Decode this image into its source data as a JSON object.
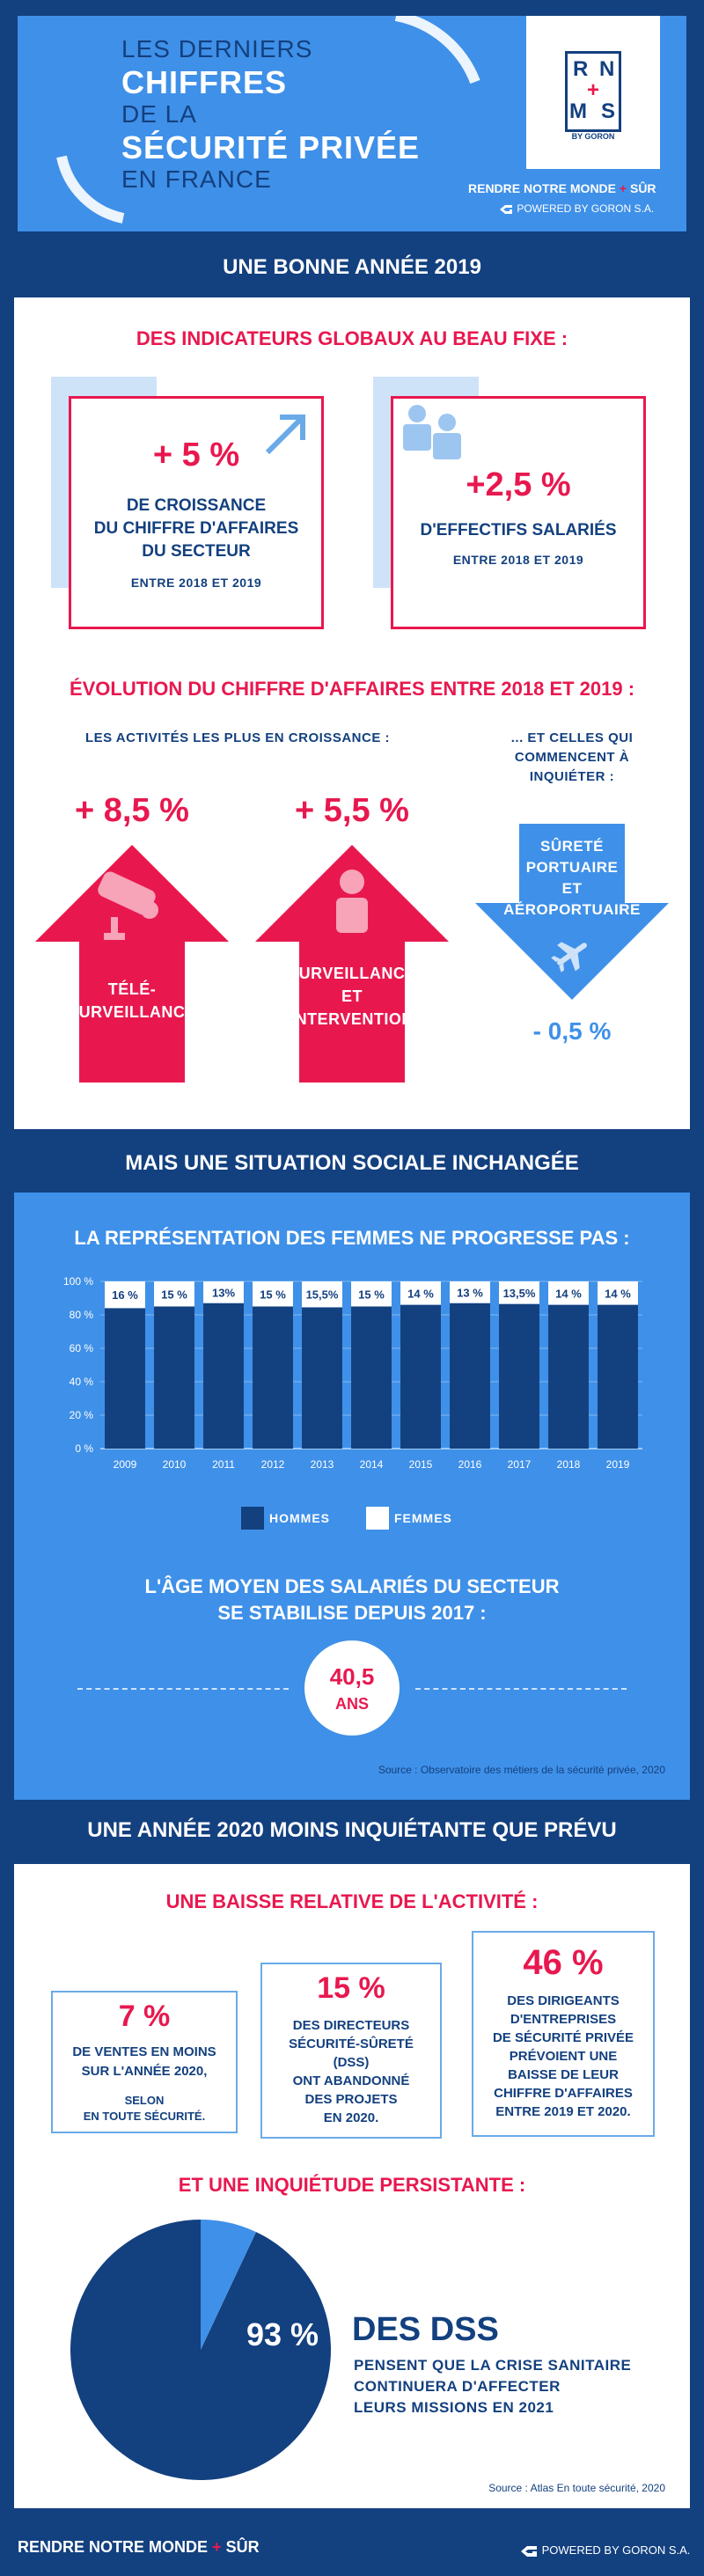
{
  "header": {
    "line1": "LES DERNIERS",
    "line2": "CHIFFRES",
    "line3": "DE LA",
    "line4": "SÉCURITÉ PRIVÉE",
    "line5": "EN FRANCE",
    "logo": {
      "r": "R",
      "n": "N",
      "m": "M",
      "s": "S",
      "plus": "+",
      "by": "BY GORON"
    },
    "tagline_prefix": "RENDRE NOTRE MONDE",
    "tagline_plus": "+",
    "tagline_sur": "SÛR",
    "powered": "POWERED BY GORON S.A."
  },
  "section1": {
    "banner": "UNE BONNE ANNÉE 2019",
    "title": "DES INDICATEURS GLOBAUX AU BEAU FIXE :",
    "card1": {
      "value": "+ 5 %",
      "line1": "DE CROISSANCE",
      "line2": "DU CHIFFRE D'AFFAIRES",
      "line3": "DU SECTEUR",
      "sub": "ENTRE 2018 ET 2019"
    },
    "card2": {
      "value": "+2,5 %",
      "line1": "D'EFFECTIFS SALARIÉS",
      "sub": "ENTRE 2018 ET 2019"
    },
    "evolution_title": "ÉVOLUTION DU CHIFFRE D'AFFAIRES ENTRE 2018 ET 2019 :",
    "growth_title": "LES ACTIVITÉS LES PLUS EN CROISSANCE :",
    "decline_title1": "... ET CELLES QUI",
    "decline_title2": "COMMENCENT À",
    "decline_title3": "INQUIÉTER :",
    "arrow1": {
      "value": "+ 8,5 %",
      "line1": "TÉLÉ-",
      "line2": "SURVEILLANCE"
    },
    "arrow2": {
      "value": "+ 5,5 %",
      "line1": "SURVEILLANCE",
      "line2": "ET",
      "line3": "INTERVENTION"
    },
    "arrow3": {
      "line1": "SÛRETÉ",
      "line2": "PORTUAIRE",
      "line3": "ET",
      "line4": "AÉROPORTUAIRE",
      "value": "- 0,5 %"
    }
  },
  "section2": {
    "banner": "MAIS UNE SITUATION SOCIALE INCHANGÉE",
    "chart_title": "LA REPRÉSENTATION DES FEMMES NE PROGRESSE PAS :",
    "legend_men": "HOMMES",
    "legend_women": "FEMMES",
    "age_title1": "L'ÂGE MOYEN DES SALARIÉS DU SECTEUR",
    "age_title2": "SE STABILISE DEPUIS 2017 :",
    "age_value": "40,5",
    "age_unit": "ANS",
    "source": "Source : Observatoire des métiers de la sécurité privée, 2020"
  },
  "chart_data": {
    "type": "bar",
    "stacked": true,
    "title": "LA REPRÉSENTATION DES FEMMES NE PROGRESSE PAS :",
    "categories": [
      "2009",
      "2010",
      "2011",
      "2012",
      "2013",
      "2014",
      "2015",
      "2016",
      "2017",
      "2018",
      "2019"
    ],
    "series": [
      {
        "name": "HOMMES",
        "values": [
          84,
          85,
          87,
          85,
          84.5,
          85,
          86,
          87,
          86.5,
          86,
          86
        ]
      },
      {
        "name": "FEMMES",
        "values": [
          16,
          15,
          13,
          15,
          15.5,
          15,
          14,
          13,
          13.5,
          14,
          14
        ]
      }
    ],
    "data_labels": [
      "16 %",
      "15 %",
      "13%",
      "15 %",
      "15,5%",
      "15 %",
      "14 %",
      "13 %",
      "13,5%",
      "14 %",
      "14 %"
    ],
    "yticks": [
      "0 %",
      "20 %",
      "40 %",
      "60 %",
      "80 %",
      "100 %"
    ],
    "ylim": [
      0,
      100
    ],
    "xlabel": "",
    "ylabel": "",
    "legend": "bottom"
  },
  "section3": {
    "banner": "UNE ANNÉE 2020 MOINS INQUIÉTANTE QUE PRÉVU",
    "title": "UNE BAISSE RELATIVE DE L'ACTIVITÉ :",
    "stat1": {
      "value": "7 %",
      "line1": "DE VENTES EN MOINS",
      "line2": "SUR L'ANNÉE 2020,",
      "line3": "SELON",
      "line4": "EN TOUTE SÉCURITÉ."
    },
    "stat2": {
      "value": "15 %",
      "line1": "DES DIRECTEURS",
      "line2": "SÉCURITÉ-SÛRETÉ",
      "line3": "(DSS)",
      "line4": "ONT ABANDONNÉ",
      "line5": "DES PROJETS",
      "line6": "EN 2020."
    },
    "stat3": {
      "value": "46 %",
      "line1": "DES DIRIGEANTS",
      "line2": "D'ENTREPRISES",
      "line3": "DE SÉCURITÉ PRIVÉE",
      "line4": "PRÉVOIENT UNE",
      "line5": "BAISSE DE LEUR",
      "line6": "CHIFFRE D'AFFAIRES",
      "line7": "ENTRE 2019 ET 2020."
    },
    "worry_title": "ET UNE INQUIÉTUDE PERSISTANTE :",
    "pie_value": "93 %",
    "pie_fraction": 0.93,
    "dss_title": "DES DSS",
    "dss_line1": "PENSENT QUE LA CRISE SANITAIRE",
    "dss_line2": "CONTINUERA D'AFFECTER",
    "dss_line3": "LEURS MISSIONS EN 2021",
    "source": "Source : Atlas En toute sécurité, 2020"
  },
  "footer": {
    "left_prefix": "RENDRE NOTRE MONDE",
    "left_plus": "+",
    "left_sur": "SÛR",
    "right": "POWERED BY GORON S.A."
  },
  "colors": {
    "navy": "#13407f",
    "blue": "#3f90e8",
    "pink": "#e8184f",
    "light": "#cfe3f8"
  },
  "icons": [
    "arrow-up-right-icon",
    "people-icon",
    "camera-icon",
    "person-icon",
    "airplane-icon",
    "goron-logo-icon"
  ]
}
